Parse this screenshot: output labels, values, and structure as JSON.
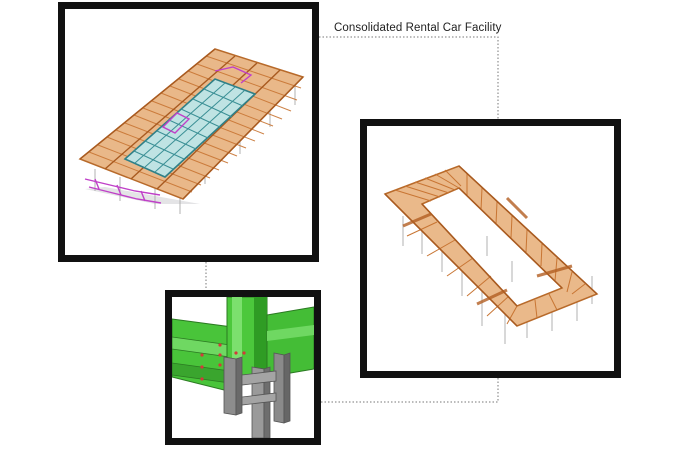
{
  "caption": "Consolidated Rental Car Facility",
  "colors": {
    "frame_border": "#111111",
    "timber_orange": "#c87533",
    "steel_teal": "#3a8f95",
    "bracing_magenta": "#c040c8",
    "connection_green": "#4cc83c",
    "column_gray": "#8c8c8c",
    "leader_line": "#777777"
  },
  "panels": [
    {
      "id": "main",
      "view": "3D structural model - full roof framing with skylight"
    },
    {
      "id": "right",
      "view": "3D roof perimeter framing"
    },
    {
      "id": "detail",
      "view": "steel connection detail"
    }
  ]
}
